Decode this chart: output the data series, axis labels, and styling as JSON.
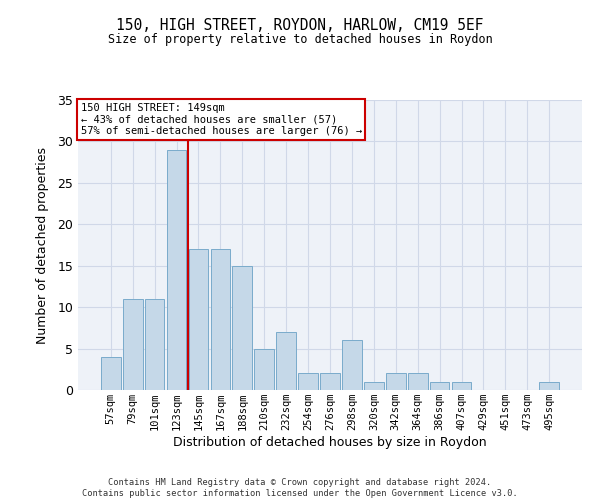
{
  "title1": "150, HIGH STREET, ROYDON, HARLOW, CM19 5EF",
  "title2": "Size of property relative to detached houses in Roydon",
  "xlabel": "Distribution of detached houses by size in Roydon",
  "ylabel": "Number of detached properties",
  "categories": [
    "57sqm",
    "79sqm",
    "101sqm",
    "123sqm",
    "145sqm",
    "167sqm",
    "188sqm",
    "210sqm",
    "232sqm",
    "254sqm",
    "276sqm",
    "298sqm",
    "320sqm",
    "342sqm",
    "364sqm",
    "386sqm",
    "407sqm",
    "429sqm",
    "451sqm",
    "473sqm",
    "495sqm"
  ],
  "values": [
    4,
    11,
    11,
    29,
    17,
    17,
    15,
    5,
    7,
    2,
    2,
    6,
    1,
    2,
    2,
    1,
    1,
    0,
    0,
    0,
    1
  ],
  "bar_color": "#c5d8e8",
  "bar_edge_color": "#7aabcb",
  "grid_color": "#d0d8e8",
  "background_color": "#eef2f8",
  "annotation_text_line1": "150 HIGH STREET: 149sqm",
  "annotation_text_line2": "← 43% of detached houses are smaller (57)",
  "annotation_text_line3": "57% of semi-detached houses are larger (76) →",
  "annotation_box_facecolor": "#ffffff",
  "annotation_box_edgecolor": "#cc0000",
  "vline_color": "#cc0000",
  "ylim": [
    0,
    35
  ],
  "yticks": [
    0,
    5,
    10,
    15,
    20,
    25,
    30,
    35
  ],
  "footer1": "Contains HM Land Registry data © Crown copyright and database right 2024.",
  "footer2": "Contains public sector information licensed under the Open Government Licence v3.0."
}
